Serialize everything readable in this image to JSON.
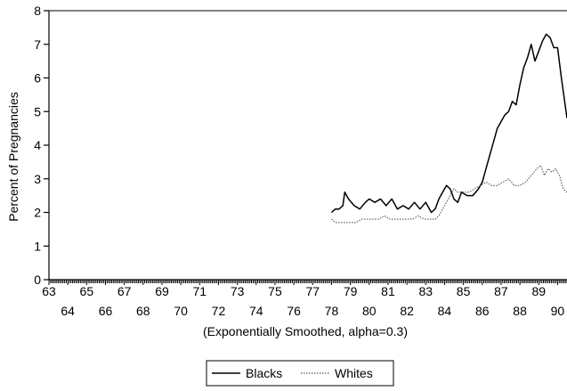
{
  "chart_data": {
    "type": "line",
    "title": "",
    "ylabel": "Percent of Pregnancies",
    "xlabel": "(Exponentially Smoothed, alpha=0.3)",
    "xlim": [
      63,
      90.5
    ],
    "ylim": [
      0,
      8
    ],
    "yticks": [
      "0",
      "1",
      "2",
      "3",
      "4",
      "5",
      "6",
      "7",
      "8"
    ],
    "xticks_top": [
      "63",
      "65",
      "67",
      "69",
      "71",
      "73",
      "75",
      "77",
      "79",
      "81",
      "83",
      "85",
      "87",
      "89"
    ],
    "xticks_bottom": [
      "64",
      "66",
      "68",
      "70",
      "72",
      "74",
      "76",
      "78",
      "80",
      "82",
      "84",
      "86",
      "88",
      "90"
    ],
    "grid": false,
    "legend_position": "bottom-center",
    "series": [
      {
        "name": "Blacks",
        "color": "#000000",
        "style": "solid",
        "x": [
          78.0,
          78.2,
          78.4,
          78.6,
          78.7,
          78.9,
          79.2,
          79.5,
          79.8,
          80.0,
          80.3,
          80.6,
          80.9,
          81.2,
          81.5,
          81.8,
          82.1,
          82.4,
          82.7,
          83.0,
          83.3,
          83.5,
          83.7,
          83.9,
          84.1,
          84.3,
          84.5,
          84.7,
          84.9,
          85.2,
          85.5,
          85.8,
          86.0,
          86.2,
          86.4,
          86.6,
          86.8,
          87.0,
          87.2,
          87.4,
          87.6,
          87.8,
          88.0,
          88.2,
          88.4,
          88.6,
          88.8,
          89.0,
          89.2,
          89.4,
          89.6,
          89.8,
          90.0,
          90.2,
          90.5
        ],
        "values": [
          2.0,
          2.1,
          2.1,
          2.2,
          2.6,
          2.4,
          2.2,
          2.1,
          2.3,
          2.4,
          2.3,
          2.4,
          2.2,
          2.4,
          2.1,
          2.2,
          2.1,
          2.3,
          2.1,
          2.3,
          2.0,
          2.1,
          2.4,
          2.6,
          2.8,
          2.7,
          2.4,
          2.3,
          2.6,
          2.5,
          2.5,
          2.7,
          2.9,
          3.3,
          3.7,
          4.1,
          4.5,
          4.7,
          4.9,
          5.0,
          5.3,
          5.2,
          5.8,
          6.3,
          6.6,
          7.0,
          6.5,
          6.8,
          7.1,
          7.3,
          7.2,
          6.9,
          6.9,
          6.0,
          4.8
        ]
      },
      {
        "name": "Whites",
        "color": "#555555",
        "style": "dotted",
        "x": [
          78.0,
          78.2,
          78.5,
          78.8,
          79.0,
          79.3,
          79.6,
          79.9,
          80.2,
          80.5,
          80.8,
          81.1,
          81.4,
          81.7,
          82.0,
          82.3,
          82.6,
          82.9,
          83.2,
          83.5,
          83.7,
          83.9,
          84.1,
          84.3,
          84.5,
          84.7,
          85.0,
          85.3,
          85.6,
          85.9,
          86.2,
          86.5,
          86.8,
          87.1,
          87.4,
          87.7,
          88.0,
          88.3,
          88.6,
          88.9,
          89.1,
          89.3,
          89.5,
          89.7,
          89.9,
          90.1,
          90.3,
          90.5
        ],
        "values": [
          1.8,
          1.7,
          1.7,
          1.7,
          1.7,
          1.7,
          1.8,
          1.8,
          1.8,
          1.8,
          1.9,
          1.8,
          1.8,
          1.8,
          1.8,
          1.8,
          1.9,
          1.8,
          1.8,
          1.8,
          1.9,
          2.1,
          2.3,
          2.5,
          2.7,
          2.6,
          2.6,
          2.6,
          2.7,
          2.8,
          2.9,
          2.8,
          2.8,
          2.9,
          3.0,
          2.8,
          2.8,
          2.9,
          3.1,
          3.3,
          3.4,
          3.1,
          3.3,
          3.2,
          3.3,
          3.1,
          2.7,
          2.6
        ]
      }
    ]
  }
}
